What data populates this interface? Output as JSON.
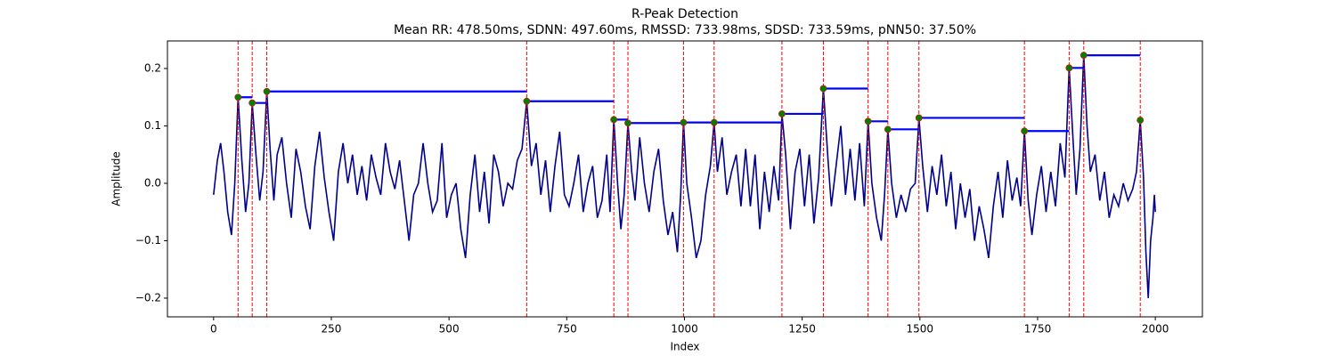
{
  "chart_data": {
    "type": "line",
    "title": "R-Peak Detection",
    "subtitle": "Mean RR: 478.50ms, SDNN: 497.60ms, RMSSD: 733.98ms, SDSD: 733.59ms, pNN50: 37.50%",
    "x_label": "Index",
    "y_label": "Amplitude",
    "x": [
      0,
      8,
      15,
      22,
      30,
      38,
      45,
      52,
      60,
      68,
      75,
      82,
      90,
      98,
      105,
      113,
      120,
      128,
      135,
      145,
      155,
      165,
      175,
      185,
      195,
      205,
      215,
      225,
      235,
      245,
      255,
      265,
      275,
      285,
      295,
      305,
      315,
      325,
      335,
      345,
      355,
      365,
      375,
      385,
      395,
      405,
      415,
      425,
      435,
      445,
      455,
      465,
      475,
      485,
      495,
      505,
      515,
      525,
      535,
      545,
      555,
      565,
      575,
      585,
      595,
      605,
      615,
      625,
      635,
      645,
      655,
      665,
      675,
      685,
      695,
      705,
      715,
      725,
      735,
      745,
      755,
      765,
      775,
      785,
      795,
      805,
      815,
      825,
      835,
      842,
      850,
      858,
      865,
      872,
      880,
      888,
      895,
      905,
      915,
      925,
      935,
      945,
      955,
      965,
      975,
      985,
      992,
      998,
      1005,
      1015,
      1025,
      1035,
      1045,
      1055,
      1063,
      1070,
      1080,
      1090,
      1100,
      1110,
      1120,
      1130,
      1140,
      1150,
      1160,
      1170,
      1180,
      1190,
      1200,
      1207,
      1215,
      1225,
      1235,
      1245,
      1255,
      1265,
      1275,
      1285,
      1295,
      1305,
      1312,
      1322,
      1332,
      1342,
      1352,
      1362,
      1372,
      1382,
      1390,
      1398,
      1408,
      1418,
      1425,
      1432,
      1440,
      1450,
      1460,
      1470,
      1480,
      1490,
      1498,
      1506,
      1516,
      1526,
      1536,
      1546,
      1556,
      1566,
      1576,
      1586,
      1596,
      1606,
      1616,
      1626,
      1636,
      1646,
      1656,
      1666,
      1676,
      1686,
      1696,
      1706,
      1714,
      1722,
      1730,
      1738,
      1748,
      1758,
      1768,
      1778,
      1788,
      1798,
      1808,
      1817,
      1825,
      1832,
      1840,
      1848,
      1855,
      1862,
      1872,
      1882,
      1892,
      1902,
      1912,
      1922,
      1932,
      1942,
      1952,
      1960,
      1968,
      1975,
      1980,
      1985,
      1990,
      1995,
      1998,
      2000
    ],
    "series": [
      {
        "color": "#00008b",
        "values": [
          -0.02,
          0.04,
          0.07,
          0.02,
          -0.05,
          -0.09,
          0.0,
          0.15,
          0.04,
          -0.05,
          0.0,
          0.14,
          0.05,
          -0.03,
          0.02,
          0.16,
          0.06,
          -0.03,
          0.05,
          0.08,
          0.0,
          -0.06,
          0.06,
          0.02,
          -0.04,
          -0.08,
          0.03,
          0.09,
          0.01,
          -0.05,
          -0.1,
          0.02,
          0.07,
          0.0,
          0.05,
          -0.02,
          0.03,
          -0.03,
          0.05,
          0.01,
          -0.02,
          0.07,
          0.02,
          -0.01,
          0.04,
          -0.03,
          -0.1,
          -0.02,
          0.0,
          0.07,
          0.0,
          -0.05,
          -0.03,
          0.07,
          -0.06,
          -0.02,
          0.0,
          -0.08,
          -0.13,
          -0.02,
          0.05,
          -0.05,
          0.02,
          -0.07,
          0.05,
          0.02,
          -0.04,
          0.0,
          -0.01,
          0.04,
          0.06,
          0.143,
          0.03,
          0.07,
          -0.02,
          0.04,
          -0.05,
          0.03,
          0.09,
          -0.02,
          -0.04,
          0.0,
          0.05,
          -0.05,
          0.0,
          0.03,
          -0.06,
          -0.03,
          0.05,
          -0.05,
          0.111,
          0.0,
          -0.08,
          -0.02,
          0.105,
          0.02,
          -0.03,
          0.08,
          0.0,
          -0.05,
          0.02,
          0.06,
          -0.03,
          -0.09,
          -0.05,
          -0.12,
          -0.02,
          0.106,
          0.0,
          -0.06,
          -0.13,
          -0.1,
          -0.02,
          0.03,
          0.106,
          0.02,
          0.08,
          -0.02,
          0.02,
          0.05,
          -0.04,
          0.06,
          -0.04,
          0.05,
          -0.08,
          0.02,
          -0.05,
          0.03,
          -0.03,
          0.121,
          0.05,
          -0.08,
          0.02,
          0.06,
          -0.04,
          0.05,
          -0.07,
          0.01,
          0.165,
          0.04,
          -0.04,
          0.03,
          0.1,
          -0.02,
          0.06,
          -0.03,
          0.07,
          -0.04,
          0.108,
          0.0,
          -0.06,
          -0.1,
          -0.02,
          0.094,
          0.0,
          -0.06,
          -0.02,
          -0.05,
          -0.01,
          0.0,
          0.114,
          0.03,
          -0.05,
          0.03,
          -0.02,
          0.05,
          -0.04,
          0.02,
          -0.08,
          0.0,
          -0.06,
          -0.01,
          -0.1,
          -0.04,
          -0.08,
          -0.13,
          -0.04,
          0.02,
          -0.06,
          0.04,
          -0.03,
          0.01,
          -0.04,
          0.091,
          -0.03,
          -0.09,
          -0.02,
          0.03,
          -0.05,
          0.02,
          -0.04,
          0.07,
          0.01,
          0.201,
          0.08,
          -0.02,
          0.06,
          0.223,
          0.1,
          0.02,
          0.05,
          -0.03,
          0.02,
          -0.06,
          -0.02,
          -0.04,
          0.0,
          -0.03,
          -0.01,
          0.02,
          0.11,
          0.01,
          -0.12,
          -0.2,
          -0.1,
          -0.06,
          -0.02,
          -0.05
        ]
      }
    ],
    "peaks": {
      "x": [
        52,
        82,
        113,
        665,
        850,
        880,
        998,
        1063,
        1207,
        1295,
        1390,
        1432,
        1498,
        1722,
        1817,
        1848,
        1968
      ],
      "values": [
        0.15,
        0.14,
        0.16,
        0.143,
        0.111,
        0.105,
        0.106,
        0.106,
        0.121,
        0.165,
        0.108,
        0.094,
        0.114,
        0.091,
        0.201,
        0.223,
        0.11
      ],
      "color": "green",
      "edgecolor": "red"
    },
    "vline_color": "red",
    "step_color": "blue",
    "xlim": [
      -98,
      2100
    ],
    "ylim": [
      -0.2326,
      0.248
    ],
    "xticks": [
      0,
      250,
      500,
      750,
      1000,
      1250,
      1500,
      1750,
      2000
    ],
    "yticks": [
      {
        "value": -0.2,
        "label": "−0.2"
      },
      {
        "value": -0.1,
        "label": "−0.1"
      },
      {
        "value": 0,
        "label": "0.0"
      },
      0.1,
      0.2
    ]
  }
}
